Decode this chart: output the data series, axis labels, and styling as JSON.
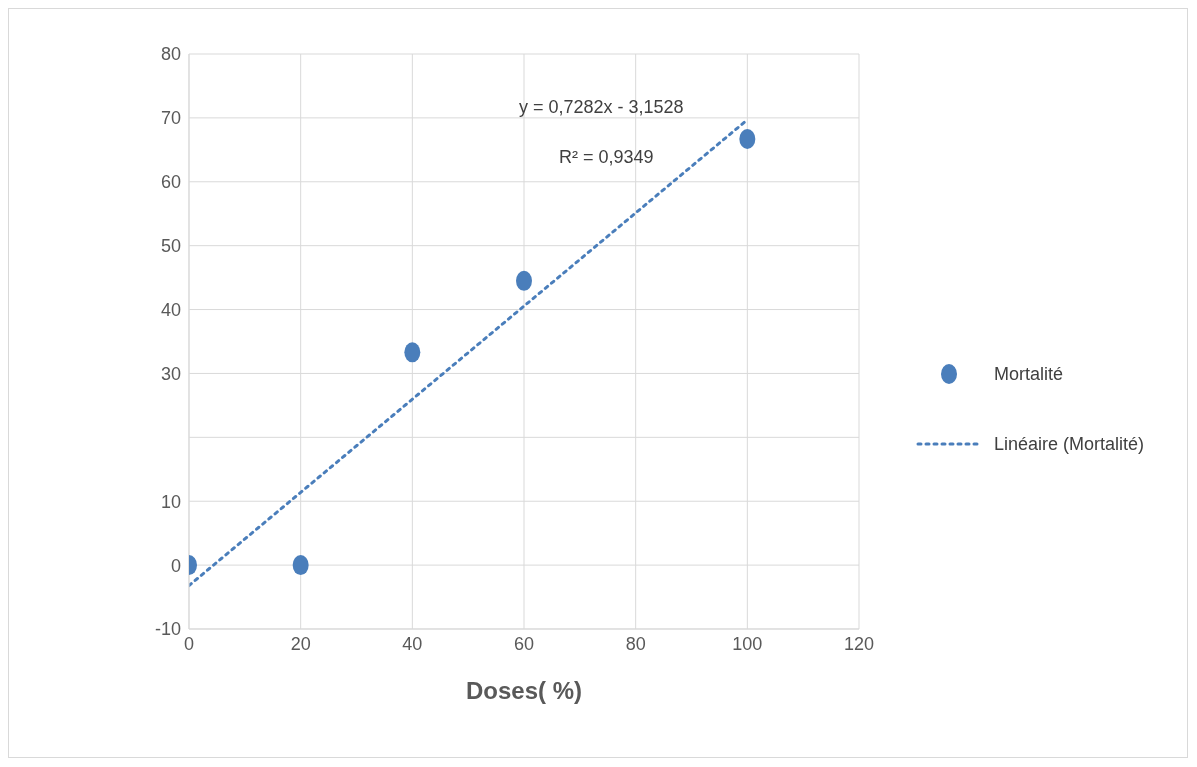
{
  "chart_data": {
    "type": "scatter",
    "xlabel": "Doses( %)",
    "xlim": [
      0,
      120
    ],
    "xticks": [
      0,
      20,
      40,
      60,
      80,
      100,
      120
    ],
    "ylim": [
      -10,
      80
    ],
    "yticks": [
      -10,
      0,
      10,
      {
        "value": 20,
        "label": null
      },
      30,
      40,
      50,
      60,
      70,
      80
    ],
    "grid": true,
    "legend": "right",
    "annotations": [
      "y = 0,7282x - 3,1528",
      "R² = 0,9349"
    ],
    "series": [
      {
        "name": "Mortalité",
        "marker": "circle",
        "color": "#4a7ebb",
        "x": [
          0,
          20,
          40,
          60,
          100
        ],
        "values": [
          0,
          0,
          33.3,
          44.5,
          66.7
        ]
      },
      {
        "name": "Linéaire (Mortalité)",
        "type": "line",
        "marker": "none",
        "color": "#4a7ebb",
        "line_style": "dotted",
        "x": [
          0,
          100
        ],
        "values": [
          -3.2,
          69.7
        ]
      }
    ]
  }
}
